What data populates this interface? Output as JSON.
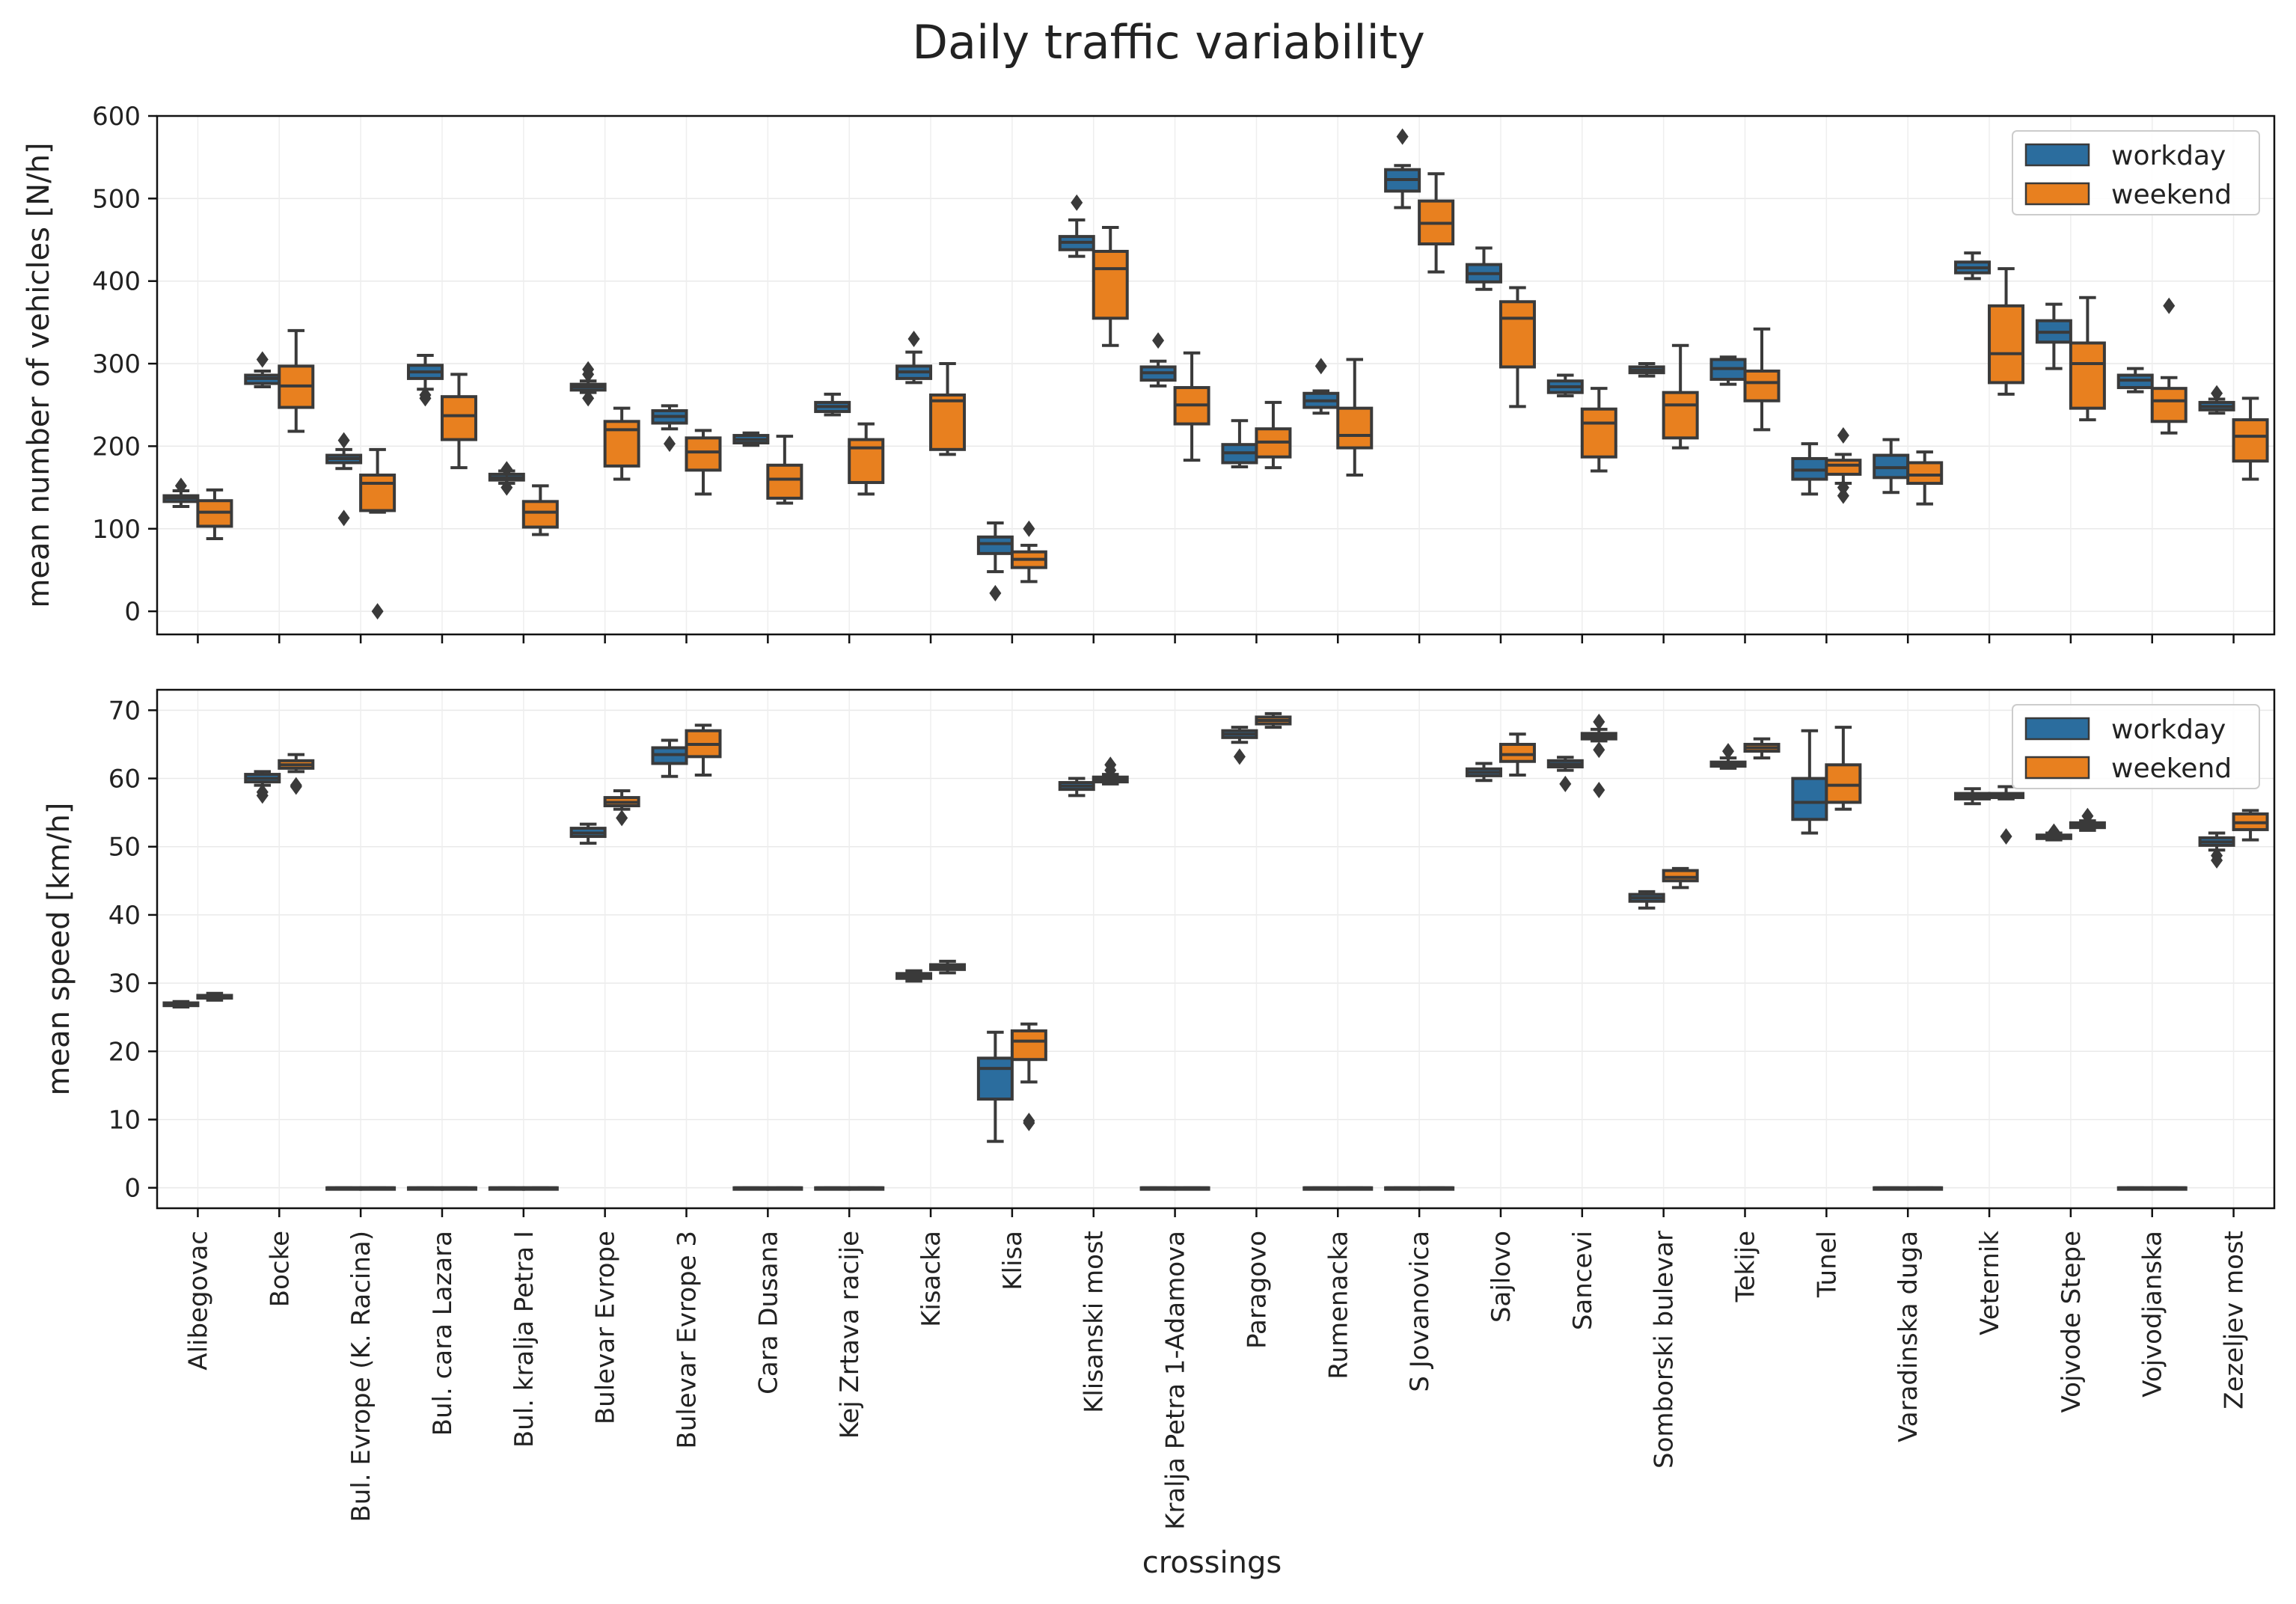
{
  "chart_data": {
    "type": "boxplot",
    "title": "Daily traffic variability",
    "xlabel": "crossings",
    "categories": [
      "Alibegovac",
      "Bocke",
      "Bul. Evrope (K. Racina)",
      "Bul. cara Lazara",
      "Bul. kralja Petra I",
      "Bulevar Evrope",
      "Bulevar Evrope 3",
      "Cara Dusana",
      "Kej Zrtava racije",
      "Kisacka",
      "Klisa",
      "Klisanski most",
      "Kralja Petra 1-Adamova",
      "Paragovo",
      "Rumenacka",
      "S Jovanovica",
      "Sajlovo",
      "Sancevi",
      "Somborski bulevar",
      "Tekije",
      "Tunel",
      "Varadinska duga",
      "Veternik",
      "Vojvode Stepe",
      "Vojvodjanska",
      "Zezeljev most"
    ],
    "series_names": [
      "workday",
      "weekend"
    ],
    "colors": {
      "workday": "#2b6d9e",
      "weekend": "#e8801f",
      "line": "#3a3a3a"
    },
    "panels": [
      {
        "id": "count",
        "ylabel": "mean number of vehicles [N/h]",
        "ylim": [
          -28,
          600
        ],
        "yticks": [
          0,
          100,
          200,
          300,
          400,
          500,
          600
        ],
        "legend": {
          "position": "top-right",
          "labels": [
            "workday",
            "weekend"
          ]
        },
        "workday": [
          [
            127,
            133,
            137,
            140,
            146,
            [
              152
            ]
          ],
          [
            272,
            276,
            282,
            286,
            291,
            [
              305
            ]
          ],
          [
            173,
            180,
            185,
            189,
            196,
            [
              207,
              113
            ]
          ],
          [
            269,
            282,
            290,
            298,
            310,
            [
              262,
              258
            ]
          ],
          [
            155,
            159,
            162,
            166,
            170,
            [
              172,
              150
            ]
          ],
          [
            265,
            268,
            272,
            275,
            279,
            [
              293,
              287,
              258
            ]
          ],
          [
            221,
            228,
            236,
            243,
            249,
            [
              203
            ]
          ],
          [
            201,
            204,
            208,
            213,
            216,
            []
          ],
          [
            238,
            242,
            248,
            253,
            263,
            []
          ],
          [
            277,
            282,
            290,
            297,
            314,
            [
              330
            ]
          ],
          [
            48,
            70,
            82,
            90,
            107,
            [
              22
            ]
          ],
          [
            430,
            438,
            447,
            454,
            474,
            [
              495
            ]
          ],
          [
            273,
            280,
            289,
            296,
            303,
            [
              328
            ]
          ],
          [
            175,
            180,
            192,
            202,
            231,
            []
          ],
          [
            240,
            247,
            255,
            264,
            267,
            [
              297
            ]
          ],
          [
            489,
            509,
            523,
            535,
            540,
            [
              575
            ]
          ],
          [
            390,
            399,
            409,
            420,
            440,
            []
          ],
          [
            261,
            265,
            272,
            279,
            286,
            []
          ],
          [
            285,
            289,
            292,
            296,
            300,
            []
          ],
          [
            275,
            281,
            294,
            305,
            308,
            []
          ],
          [
            142,
            160,
            171,
            185,
            203,
            []
          ],
          [
            144,
            162,
            174,
            189,
            208,
            []
          ],
          [
            403,
            410,
            416,
            423,
            434,
            []
          ],
          [
            294,
            326,
            338,
            352,
            372,
            []
          ],
          [
            266,
            271,
            280,
            286,
            294,
            []
          ],
          [
            240,
            244,
            248,
            253,
            257,
            [
              264
            ]
          ]
        ],
        "weekend": [
          [
            88,
            103,
            120,
            134,
            147,
            []
          ],
          [
            218,
            247,
            273,
            297,
            340,
            []
          ],
          [
            120,
            122,
            155,
            165,
            196,
            [
              0
            ]
          ],
          [
            174,
            208,
            237,
            260,
            287,
            []
          ],
          [
            93,
            102,
            120,
            133,
            152,
            []
          ],
          [
            160,
            176,
            220,
            230,
            246,
            []
          ],
          [
            142,
            171,
            193,
            210,
            219,
            []
          ],
          [
            131,
            137,
            160,
            177,
            212,
            []
          ],
          [
            142,
            156,
            198,
            208,
            227,
            []
          ],
          [
            190,
            196,
            255,
            262,
            300,
            []
          ],
          [
            36,
            53,
            63,
            72,
            80,
            [
              100
            ]
          ],
          [
            322,
            355,
            415,
            436,
            465,
            []
          ],
          [
            183,
            227,
            250,
            271,
            313,
            []
          ],
          [
            174,
            187,
            205,
            221,
            253,
            []
          ],
          [
            165,
            198,
            213,
            246,
            305,
            []
          ],
          [
            411,
            445,
            470,
            497,
            530,
            []
          ],
          [
            248,
            296,
            355,
            375,
            392,
            []
          ],
          [
            170,
            187,
            228,
            245,
            270,
            []
          ],
          [
            198,
            210,
            250,
            265,
            322,
            []
          ],
          [
            220,
            255,
            277,
            291,
            342,
            []
          ],
          [
            155,
            166,
            177,
            183,
            190,
            [
              213,
              150,
              140
            ]
          ],
          [
            130,
            155,
            165,
            180,
            193,
            []
          ],
          [
            263,
            277,
            312,
            370,
            415,
            []
          ],
          [
            232,
            246,
            300,
            325,
            380,
            []
          ],
          [
            216,
            230,
            255,
            270,
            283,
            [
              370
            ]
          ],
          [
            160,
            182,
            212,
            232,
            258,
            []
          ]
        ]
      },
      {
        "id": "speed",
        "ylabel": "mean speed [km/h]",
        "ylim": [
          -3,
          73
        ],
        "yticks": [
          0,
          10,
          20,
          30,
          40,
          50,
          60,
          70
        ],
        "legend": {
          "position": "top-right",
          "labels": [
            "workday",
            "weekend"
          ]
        },
        "workday": [
          [
            26.5,
            26.7,
            26.9,
            27.1,
            27.3,
            []
          ],
          [
            59.0,
            59.5,
            60.0,
            60.6,
            61.0,
            [
              57.5,
              58.0
            ]
          ],
          [
            0,
            0,
            0,
            0,
            0,
            []
          ],
          [
            0,
            0,
            0,
            0,
            0,
            []
          ],
          [
            0,
            0,
            0,
            0,
            0,
            []
          ],
          [
            50.5,
            51.5,
            52.0,
            52.7,
            53.3,
            []
          ],
          [
            60.3,
            62.2,
            63.5,
            64.5,
            65.6,
            []
          ],
          [
            0,
            0,
            0,
            0,
            0,
            []
          ],
          [
            0,
            0,
            0,
            0,
            0,
            []
          ],
          [
            30.3,
            30.7,
            31.0,
            31.4,
            31.8,
            []
          ],
          [
            6.8,
            13.0,
            17.5,
            19.0,
            22.8,
            []
          ],
          [
            57.5,
            58.4,
            58.9,
            59.4,
            60.0,
            []
          ],
          [
            0,
            0,
            0,
            0,
            0,
            []
          ],
          [
            65.3,
            66.0,
            66.5,
            67.0,
            67.5,
            [
              63.2
            ]
          ],
          [
            0,
            0,
            0,
            0,
            0,
            []
          ],
          [
            0,
            0,
            0,
            0,
            0,
            []
          ],
          [
            59.7,
            60.4,
            60.9,
            61.4,
            62.2,
            []
          ],
          [
            61.2,
            61.7,
            62.1,
            62.6,
            63.1,
            [
              59.2
            ]
          ],
          [
            41.0,
            42.0,
            42.5,
            43.0,
            43.4,
            []
          ],
          [
            61.5,
            61.8,
            62.1,
            62.4,
            63.0,
            [
              64.0
            ]
          ],
          [
            52.0,
            54.0,
            56.5,
            60.0,
            67.0,
            []
          ],
          [
            0,
            0,
            0,
            0,
            0,
            []
          ],
          [
            56.3,
            57.0,
            57.4,
            57.8,
            58.5,
            []
          ],
          [
            51.0,
            51.2,
            51.4,
            51.7,
            52.0,
            [
              52.2
            ]
          ],
          [
            0,
            0,
            0,
            0,
            0,
            []
          ],
          [
            49.5,
            50.2,
            50.7,
            51.3,
            52.0,
            [
              48.0,
              48.7
            ]
          ]
        ],
        "weekend": [
          [
            27.5,
            27.8,
            28.0,
            28.2,
            28.5,
            []
          ],
          [
            61.0,
            61.5,
            62.0,
            62.6,
            63.5,
            [
              59.0,
              58.8
            ]
          ],
          [
            0,
            0,
            0,
            0,
            0,
            []
          ],
          [
            0,
            0,
            0,
            0,
            0,
            []
          ],
          [
            0,
            0,
            0,
            0,
            0,
            []
          ],
          [
            55.5,
            56.0,
            56.5,
            57.2,
            58.2,
            [
              54.2
            ]
          ],
          [
            60.5,
            63.2,
            65.0,
            67.0,
            67.8,
            []
          ],
          [
            0,
            0,
            0,
            0,
            0,
            []
          ],
          [
            0,
            0,
            0,
            0,
            0,
            []
          ],
          [
            31.5,
            32.0,
            32.3,
            32.7,
            33.2,
            []
          ],
          [
            15.5,
            18.8,
            21.5,
            23.0,
            24.0,
            [
              9.8,
              9.5
            ]
          ],
          [
            59.2,
            59.5,
            59.8,
            60.2,
            60.6,
            [
              61.2,
              62.0
            ]
          ],
          [
            0,
            0,
            0,
            0,
            0,
            []
          ],
          [
            67.5,
            68.0,
            68.5,
            69.0,
            69.5,
            []
          ],
          [
            0,
            0,
            0,
            0,
            0,
            []
          ],
          [
            0,
            0,
            0,
            0,
            0,
            []
          ],
          [
            60.5,
            62.5,
            63.5,
            65.0,
            66.5,
            []
          ],
          [
            65.5,
            65.8,
            66.2,
            66.6,
            67.2,
            [
              64.2,
              68.3,
              58.3
            ]
          ],
          [
            44.0,
            45.0,
            45.5,
            46.5,
            46.8,
            []
          ],
          [
            63.0,
            64.0,
            64.5,
            65.0,
            65.8,
            []
          ],
          [
            55.5,
            56.5,
            59.0,
            62.0,
            67.5,
            []
          ],
          [
            0,
            0,
            0,
            0,
            0,
            []
          ],
          [
            57.0,
            57.2,
            57.5,
            57.8,
            58.8,
            [
              51.5
            ]
          ],
          [
            52.4,
            52.8,
            53.2,
            53.5,
            53.8,
            [
              54.5
            ]
          ],
          [
            0,
            0,
            0,
            0,
            0,
            []
          ],
          [
            51.0,
            52.5,
            53.5,
            54.8,
            55.3,
            []
          ]
        ]
      }
    ]
  }
}
